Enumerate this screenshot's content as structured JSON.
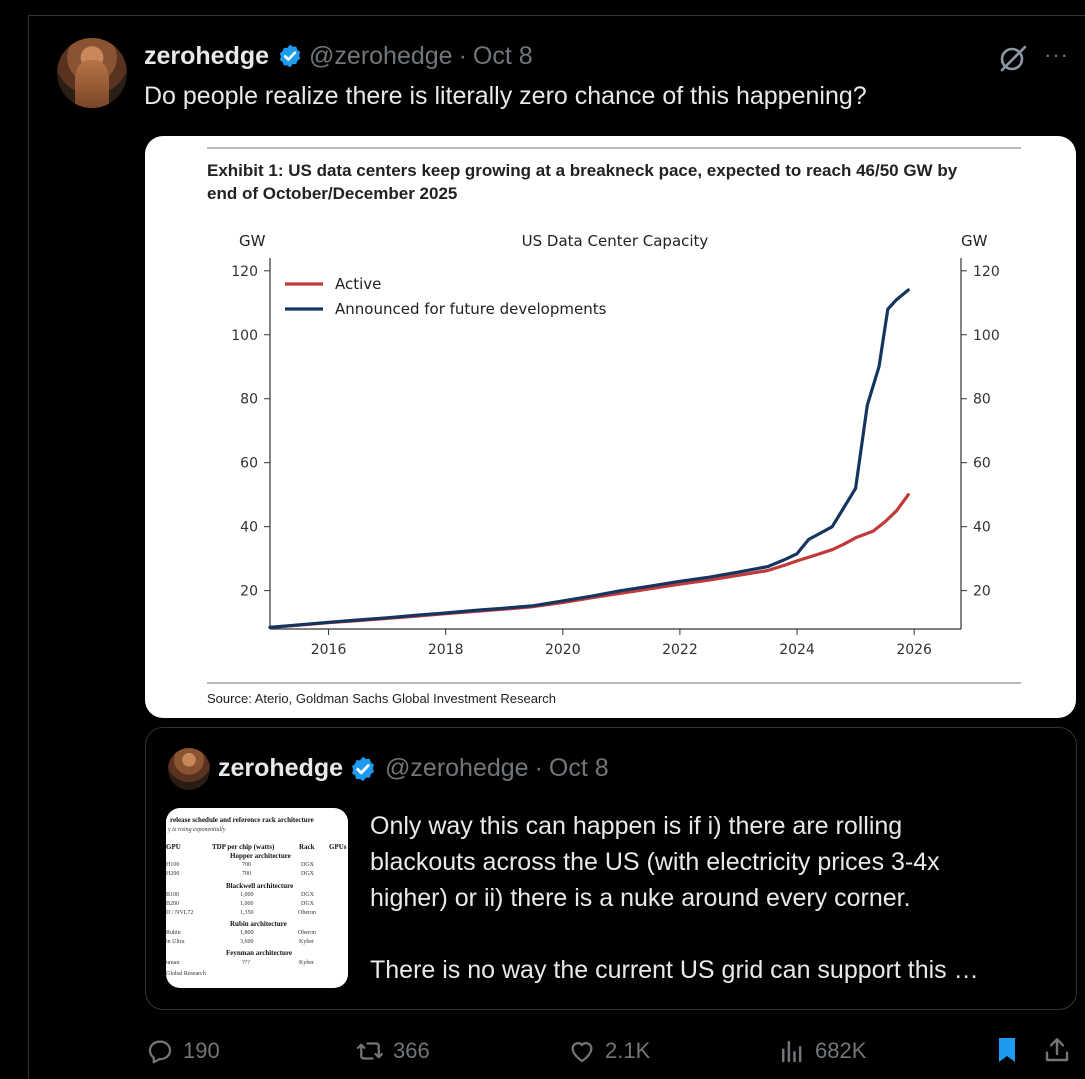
{
  "post": {
    "name": "zerohedge",
    "handle": "@zerohedge",
    "separator": "·",
    "date": "Oct 8",
    "more_glyph": "···",
    "text": "Do people realize there is literally zero chance of this happening?"
  },
  "chart_card": {
    "exhibit_title_line1": "Exhibit 1: US data centers keep growing at a breakneck pace, expected to reach 46/50 GW by",
    "exhibit_title_line2": "end of October/December 2025",
    "source": "Source: Aterio, Goldman Sachs Global Investment Research"
  },
  "chart_data": {
    "type": "line",
    "title": "US Data Center Capacity",
    "ylabel_left": "GW",
    "ylabel_right": "GW",
    "xlim": [
      2015.0,
      2026.8
    ],
    "ylim": [
      8,
      124
    ],
    "xticks": [
      2016,
      2018,
      2020,
      2022,
      2024,
      2026
    ],
    "yticks": [
      20,
      40,
      60,
      80,
      100,
      120
    ],
    "legend_position": "top-left",
    "grid": false,
    "series": [
      {
        "name": "Active",
        "color": "#c0393b",
        "x": [
          2015.0,
          2015.5,
          2016.0,
          2016.5,
          2017.0,
          2017.5,
          2018.0,
          2018.5,
          2019.0,
          2019.5,
          2020.0,
          2020.5,
          2021.0,
          2021.5,
          2022.0,
          2022.5,
          2023.0,
          2023.5,
          2023.8,
          2024.0,
          2024.3,
          2024.6,
          2024.8,
          2025.0,
          2025.3,
          2025.5,
          2025.7,
          2025.9
        ],
        "y": [
          8.5,
          9.2,
          10.0,
          10.6,
          11.3,
          12.0,
          12.8,
          13.5,
          14.2,
          15.0,
          16.3,
          17.8,
          19.2,
          20.6,
          22.0,
          23.3,
          24.8,
          26.3,
          28.0,
          29.3,
          31.0,
          32.8,
          34.5,
          36.5,
          38.6,
          41.5,
          45.0,
          50.0
        ]
      },
      {
        "name": "Announced for future developments",
        "color": "#14365e",
        "x": [
          2015.0,
          2015.5,
          2016.0,
          2016.5,
          2017.0,
          2017.5,
          2018.0,
          2018.5,
          2019.0,
          2019.5,
          2020.0,
          2020.5,
          2021.0,
          2021.5,
          2022.0,
          2022.5,
          2023.0,
          2023.5,
          2023.8,
          2024.0,
          2024.2,
          2024.4,
          2024.6,
          2024.8,
          2025.0,
          2025.2,
          2025.4,
          2025.55,
          2025.7,
          2025.9
        ],
        "y": [
          8.5,
          9.3,
          10.1,
          10.8,
          11.5,
          12.3,
          13.0,
          13.8,
          14.5,
          15.3,
          16.8,
          18.3,
          20.0,
          21.4,
          22.9,
          24.2,
          25.8,
          27.5,
          29.8,
          31.5,
          36.0,
          38.0,
          40.0,
          46.0,
          52.0,
          78.0,
          90.0,
          108.0,
          111.0,
          114.0
        ]
      }
    ]
  },
  "quote": {
    "name": "zerohedge",
    "handle": "@zerohedge",
    "separator": "·",
    "date": "Oct 8",
    "line1": "Only way this can happen is if i) there are rolling",
    "line2": "blackouts across the US (with electricity prices 3-4x",
    "line3": "higher) or ii) there is a nuke around every corner.",
    "line4": "There is no way the current US grid can support this  …",
    "thumb": {
      "title": "release schedule and reference rack architecture",
      "subtitle": "y is rising exponentially",
      "col_gpu": "GPU",
      "col_tdp": "TDP per chip (watts)",
      "col_rack": "Rack",
      "col_gpus": "GPUs",
      "sec_hopper": "Hopper architecture",
      "r1_gpu": "H100",
      "r1_tdp": "700",
      "r1_rack": "DGX",
      "r2_gpu": "H200",
      "r2_tdp": "700",
      "r2_rack": "DGX",
      "sec_blackwell": "Blackwell architecture",
      "r3_gpu": "B100",
      "r3_tdp": "1,000",
      "r3_rack": "DGX",
      "r4_gpu": "B200",
      "r4_tdp": "1,000",
      "r4_rack": "DGX",
      "r5_gpu": "D / NVL72",
      "r5_tdp": "1,350",
      "r5_rack": "Oberon",
      "sec_rubin": "Rubin architecture",
      "r6_gpu": "Rubin",
      "r6_tdp": "1,800",
      "r6_rack": "Oberon",
      "r7_gpu": "in Ultra",
      "r7_tdp": "3,600",
      "r7_rack": "Kyber",
      "sec_feynman": "Feynman architecture",
      "r8_gpu": "nman",
      "r8_tdp": "???",
      "r8_rack": "Kyber",
      "footer": "Global Research"
    }
  },
  "actions": {
    "replies": "190",
    "reposts": "366",
    "likes": "2.1K",
    "views": "682K"
  },
  "colors": {
    "accent": "#1d9bf0",
    "muted": "#71767b",
    "active_line": "#c0393b",
    "announced_line": "#14365e"
  },
  "icons": {
    "verified": "verified-badge-icon",
    "grok": "grok-icon",
    "more": "more-icon",
    "reply": "reply-icon",
    "repost": "repost-icon",
    "like": "like-icon",
    "views": "views-icon",
    "bookmark": "bookmark-icon",
    "share": "share-icon"
  }
}
